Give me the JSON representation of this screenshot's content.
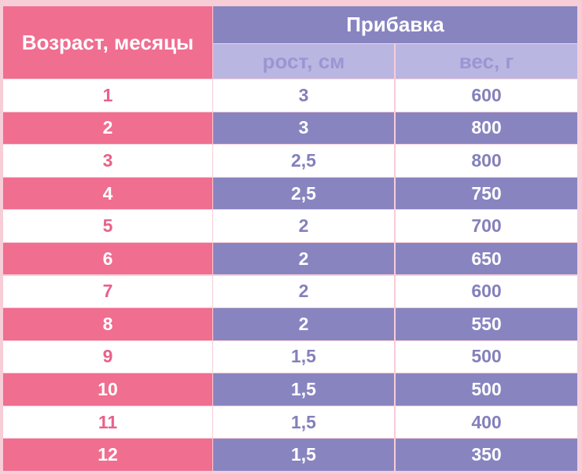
{
  "header": {
    "age": "Возраст, месяцы",
    "group": "Прибавка",
    "columns": [
      "рост, см",
      "вес, г"
    ]
  },
  "table": {
    "rows": [
      [
        "1",
        "3",
        "600"
      ],
      [
        "2",
        "3",
        "800"
      ],
      [
        "3",
        "2,5",
        "800"
      ],
      [
        "4",
        "2,5",
        "750"
      ],
      [
        "5",
        "2",
        "700"
      ],
      [
        "6",
        "2",
        "650"
      ],
      [
        "7",
        "2",
        "600"
      ],
      [
        "8",
        "2",
        "550"
      ],
      [
        "9",
        "1,5",
        "500"
      ],
      [
        "10",
        "1,5",
        "500"
      ],
      [
        "11",
        "1,5",
        "400"
      ],
      [
        "12",
        "1,5",
        "350"
      ]
    ]
  }
}
